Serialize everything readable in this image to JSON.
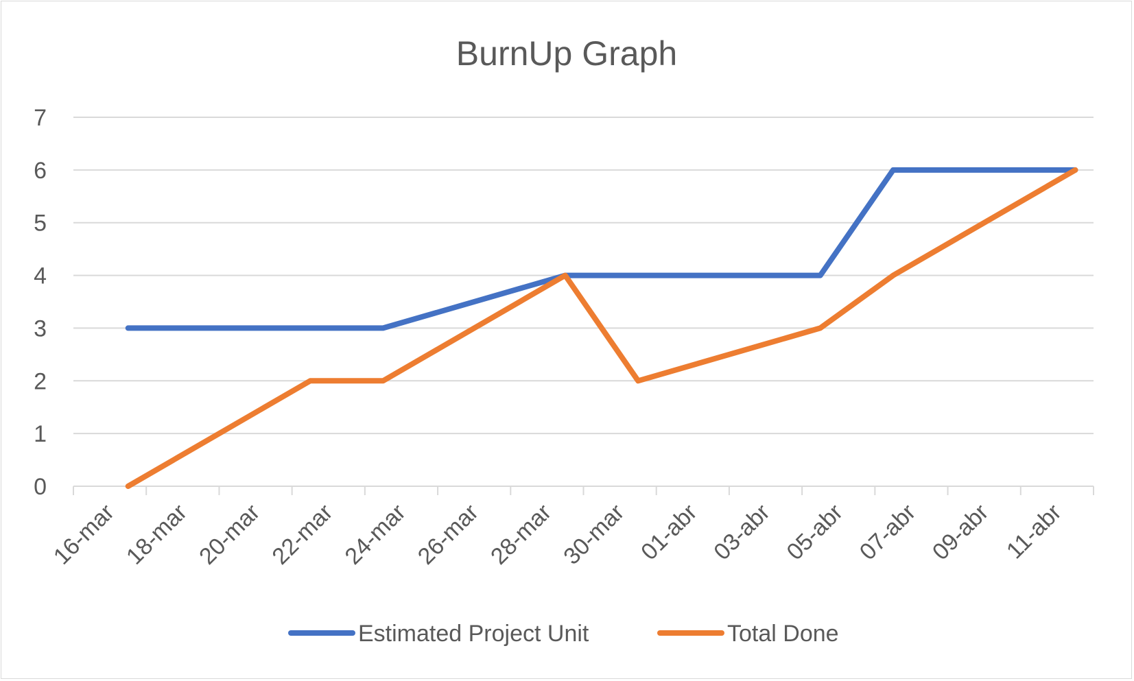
{
  "chart_data": {
    "type": "line",
    "title": "BurnUp Graph",
    "xlabel": "",
    "ylabel": "",
    "x_ticks": [
      "16-mar",
      "18-mar",
      "20-mar",
      "22-mar",
      "24-mar",
      "26-mar",
      "28-mar",
      "30-mar",
      "01-abr",
      "03-abr",
      "05-abr",
      "07-abr",
      "09-abr",
      "11-abr"
    ],
    "y_ticks": [
      "0",
      "1",
      "2",
      "3",
      "4",
      "5",
      "6",
      "7"
    ],
    "ylim": [
      0,
      7
    ],
    "xlim": [
      "2020-03-15",
      "2020-04-11"
    ],
    "grid": "horizontal",
    "legend": "bottom",
    "series": [
      {
        "name": "Estimated Project Unit",
        "color": "#4472c4",
        "points": [
          {
            "x": "2020-03-16",
            "y": 3
          },
          {
            "x": "2020-03-23",
            "y": 3
          },
          {
            "x": "2020-03-28",
            "y": 4
          },
          {
            "x": "2020-04-04",
            "y": 4
          },
          {
            "x": "2020-04-06",
            "y": 6
          },
          {
            "x": "2020-04-11",
            "y": 6
          }
        ]
      },
      {
        "name": "Total Done",
        "color": "#ed7d31",
        "points": [
          {
            "x": "2020-03-16",
            "y": 0
          },
          {
            "x": "2020-03-21",
            "y": 2
          },
          {
            "x": "2020-03-23",
            "y": 2
          },
          {
            "x": "2020-03-28",
            "y": 4
          },
          {
            "x": "2020-03-30",
            "y": 2
          },
          {
            "x": "2020-04-04",
            "y": 3
          },
          {
            "x": "2020-04-06",
            "y": 4
          },
          {
            "x": "2020-04-11",
            "y": 6
          }
        ]
      }
    ]
  }
}
